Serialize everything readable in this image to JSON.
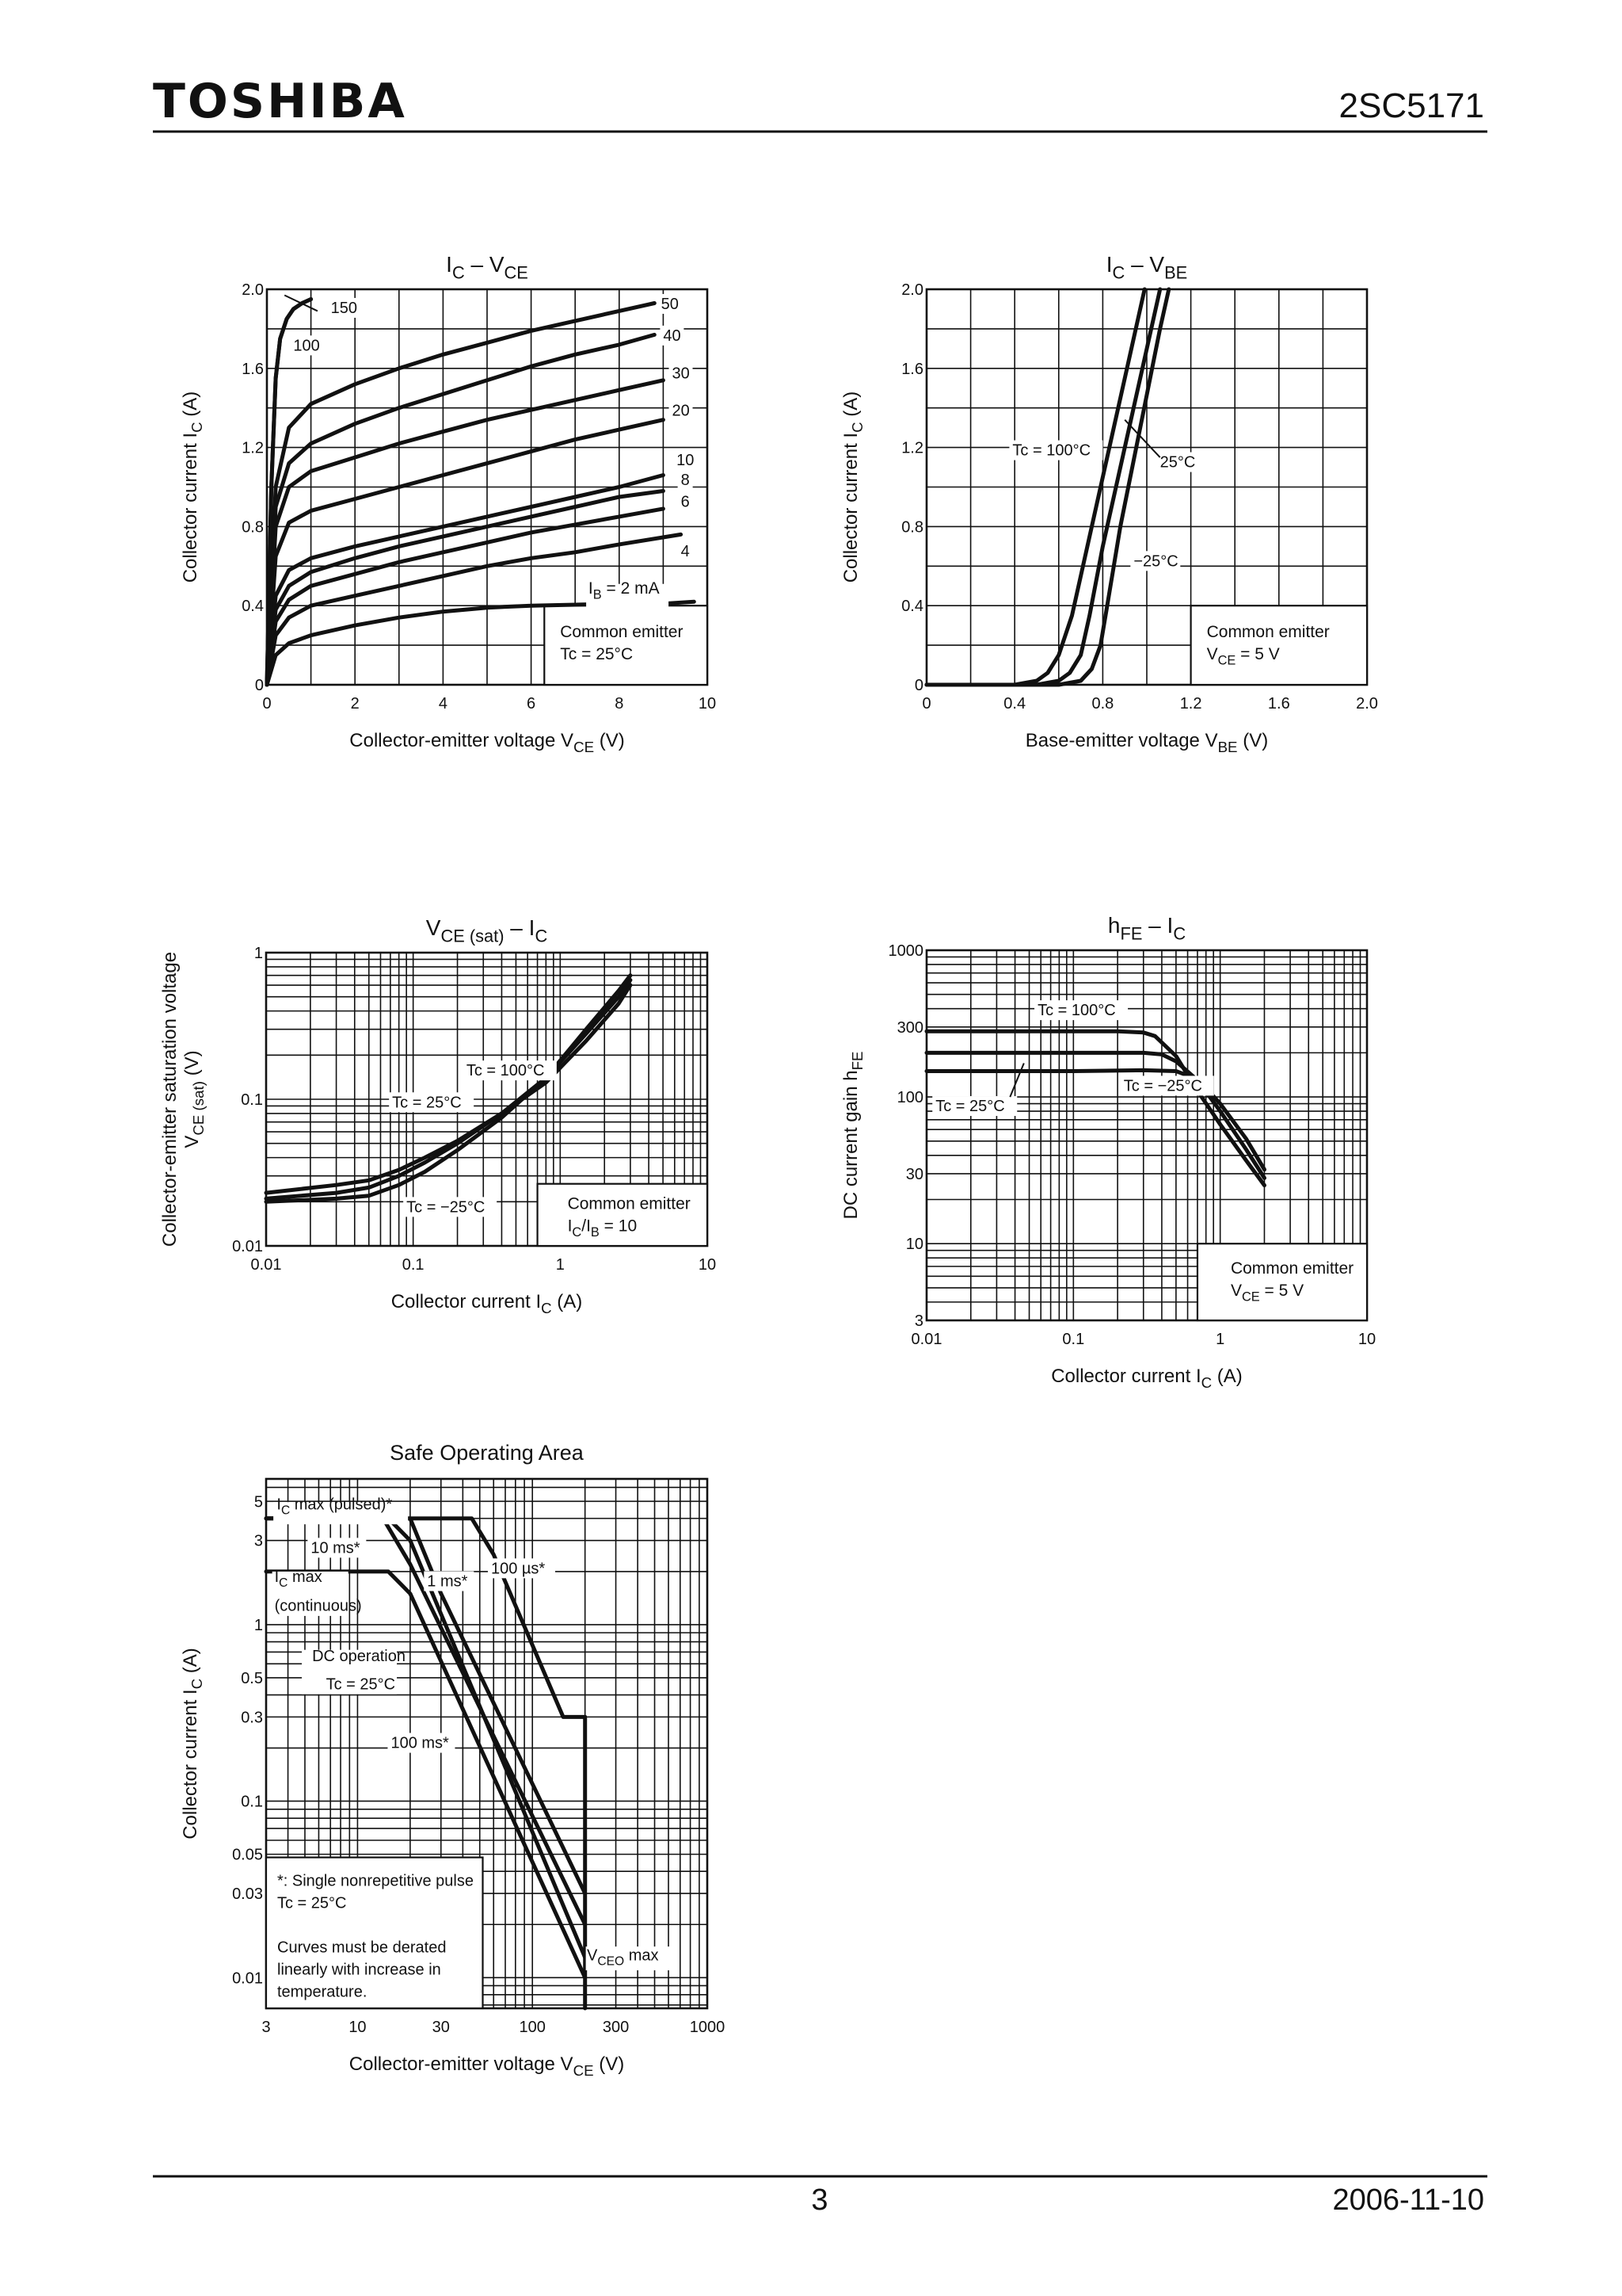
{
  "header": {
    "brand": "TOSHIBA",
    "part_number": "2SC5171"
  },
  "footer": {
    "page_number": "3",
    "date": "2006-11-10"
  },
  "chart_data": [
    {
      "id": "ic-vce",
      "type": "line",
      "title_main": "I",
      "title_sub": "C",
      "title_sep": " – V",
      "title_sub2": "CE",
      "xlabel": "Collector-emitter voltage",
      "xsym": "V",
      "xsym_sub": "CE",
      "xunit": "(V)",
      "ylabel": "Collector current",
      "ysym": "I",
      "ysym_sub": "C",
      "yunit": "(A)",
      "xlim": [
        0,
        10
      ],
      "ylim": [
        0,
        2.0
      ],
      "xticks": [
        "0",
        "2",
        "4",
        "6",
        "8",
        "10"
      ],
      "yticks": [
        "0",
        "0.4",
        "0.8",
        "1.2",
        "1.6",
        "2.0"
      ],
      "note": [
        "Common emitter",
        "Tc = 25°C"
      ],
      "series": [
        {
          "name": "150",
          "x": [
            0,
            0.1,
            0.2,
            0.3,
            0.45,
            0.6,
            0.8,
            1.0
          ],
          "y": [
            0,
            1.0,
            1.55,
            1.75,
            1.85,
            1.9,
            1.93,
            1.95
          ]
        },
        {
          "name": "100",
          "x": [
            0,
            0.1,
            0.2,
            0.3,
            0.45,
            0.6,
            0.8,
            1.0
          ],
          "y": [
            0,
            1.0,
            1.55,
            1.75,
            1.85,
            1.9,
            1.93,
            1.95
          ]
        },
        {
          "name": "50",
          "x": [
            0,
            0.2,
            0.5,
            1,
            2,
            3,
            4,
            5,
            6,
            7,
            8,
            8.8
          ],
          "y": [
            0,
            1.0,
            1.3,
            1.42,
            1.52,
            1.6,
            1.67,
            1.73,
            1.79,
            1.84,
            1.89,
            1.93
          ]
        },
        {
          "name": "40",
          "x": [
            0,
            0.2,
            0.5,
            1,
            2,
            3,
            4,
            5,
            6,
            7,
            8,
            8.8
          ],
          "y": [
            0,
            0.9,
            1.12,
            1.22,
            1.32,
            1.4,
            1.47,
            1.54,
            1.61,
            1.67,
            1.72,
            1.77
          ]
        },
        {
          "name": "30",
          "x": [
            0,
            0.2,
            0.5,
            1,
            2,
            3,
            4,
            5,
            6,
            7,
            8,
            9
          ],
          "y": [
            0,
            0.8,
            1.0,
            1.08,
            1.15,
            1.22,
            1.28,
            1.34,
            1.39,
            1.44,
            1.49,
            1.54
          ]
        },
        {
          "name": "20",
          "x": [
            0,
            0.2,
            0.5,
            1,
            2,
            3,
            4,
            5,
            6,
            7,
            8,
            9
          ],
          "y": [
            0,
            0.65,
            0.82,
            0.88,
            0.94,
            1.0,
            1.06,
            1.12,
            1.18,
            1.24,
            1.29,
            1.34
          ]
        },
        {
          "name": "10",
          "x": [
            0,
            0.2,
            0.5,
            1,
            2,
            3,
            4,
            5,
            6,
            7,
            8,
            9
          ],
          "y": [
            0,
            0.45,
            0.58,
            0.64,
            0.7,
            0.75,
            0.8,
            0.85,
            0.9,
            0.95,
            1.0,
            1.06
          ]
        },
        {
          "name": "8",
          "x": [
            0,
            0.2,
            0.5,
            1,
            2,
            3,
            4,
            5,
            6,
            7,
            8,
            9
          ],
          "y": [
            0,
            0.38,
            0.5,
            0.57,
            0.64,
            0.7,
            0.75,
            0.8,
            0.85,
            0.9,
            0.95,
            0.98
          ]
        },
        {
          "name": "6",
          "x": [
            0,
            0.2,
            0.5,
            1,
            2,
            3,
            4,
            5,
            6,
            7,
            8,
            9
          ],
          "y": [
            0,
            0.32,
            0.43,
            0.5,
            0.56,
            0.62,
            0.67,
            0.72,
            0.77,
            0.81,
            0.85,
            0.89
          ]
        },
        {
          "name": "4",
          "x": [
            0,
            0.2,
            0.5,
            1,
            2,
            3,
            4,
            5,
            6,
            7,
            8,
            9.4
          ],
          "y": [
            0,
            0.25,
            0.34,
            0.4,
            0.45,
            0.5,
            0.55,
            0.6,
            0.64,
            0.67,
            0.71,
            0.76
          ]
        },
        {
          "name": "IB = 2 mA",
          "x": [
            0,
            0.2,
            0.5,
            1,
            2,
            3,
            4,
            5,
            6,
            7,
            8,
            9,
            9.7
          ],
          "y": [
            0,
            0.15,
            0.21,
            0.25,
            0.3,
            0.34,
            0.37,
            0.39,
            0.4,
            0.405,
            0.41,
            0.41,
            0.42
          ]
        }
      ],
      "curve_labels": [
        "150",
        "100",
        "50",
        "40",
        "30",
        "20",
        "10",
        "8",
        "6",
        "4"
      ],
      "ib_label": {
        "pre": "I",
        "sub": "B",
        "post": " = 2 mA"
      }
    },
    {
      "id": "ic-vbe",
      "type": "line",
      "title_main": "I",
      "title_sub": "C",
      "title_sep": " – V",
      "title_sub2": "BE",
      "xlabel": "Base-emitter voltage",
      "xsym": "V",
      "xsym_sub": "BE",
      "xunit": "(V)",
      "ylabel": "Collector current",
      "ysym": "I",
      "ysym_sub": "C",
      "yunit": "(A)",
      "xlim": [
        0,
        2.0
      ],
      "ylim": [
        0,
        2.0
      ],
      "xticks": [
        "0",
        "0.4",
        "0.8",
        "1.2",
        "1.6",
        "2.0"
      ],
      "yticks": [
        "0",
        "0.4",
        "0.8",
        "1.2",
        "1.6",
        "2.0"
      ],
      "note_line1": "Common emitter",
      "note_pre": "V",
      "note_sub": "CE",
      "note_post": " = 5 V",
      "series": [
        {
          "name": "Tc = 100°C",
          "x": [
            0,
            0.4,
            0.5,
            0.55,
            0.6,
            0.66,
            0.75,
            0.85,
            0.95,
            0.99
          ],
          "y": [
            0,
            0,
            0.02,
            0.06,
            0.15,
            0.35,
            0.8,
            1.3,
            1.8,
            2.0
          ]
        },
        {
          "name": "25°C",
          "x": [
            0,
            0.5,
            0.6,
            0.65,
            0.7,
            0.74,
            0.8,
            0.9,
            1.0,
            1.06
          ],
          "y": [
            0,
            0,
            0.02,
            0.06,
            0.15,
            0.35,
            0.7,
            1.2,
            1.7,
            2.0
          ]
        },
        {
          "name": "−25°C",
          "x": [
            0,
            0.6,
            0.7,
            0.75,
            0.79,
            0.82,
            0.88,
            0.97,
            1.06,
            1.1
          ],
          "y": [
            0,
            0,
            0.02,
            0.08,
            0.2,
            0.4,
            0.8,
            1.3,
            1.8,
            2.0
          ]
        }
      ]
    },
    {
      "id": "vcesat-ic",
      "type": "line",
      "title_main": "V",
      "title_sub": "CE (sat)",
      "title_sep": " – I",
      "title_sub2": "C",
      "xlabel": "Collector current",
      "xsym": "I",
      "xsym_sub": "C",
      "xunit": "(A)",
      "ylabel": "Collector-emitter saturation voltage",
      "ysym": "V",
      "ysym_sub": "CE (sat)",
      "yunit": "(V)",
      "xlim": [
        0.01,
        10
      ],
      "ylim": [
        0.01,
        1
      ],
      "xscale": "log",
      "yscale": "log",
      "xticks": [
        "0.01",
        "0.1",
        "1",
        "10"
      ],
      "yticks": [
        "0.01",
        "0.1",
        "1"
      ],
      "note_line1": "Common emitter",
      "note_pre": "I",
      "note_sub": "C",
      "note_mid": "/I",
      "note_sub2": "B",
      "note_post": " = 10",
      "series": [
        {
          "name": "Tc = 100°C",
          "x": [
            0.01,
            0.03,
            0.05,
            0.08,
            0.12,
            0.2,
            0.4,
            0.8,
            1.5,
            2.5,
            3.0
          ],
          "y": [
            0.023,
            0.026,
            0.028,
            0.033,
            0.04,
            0.052,
            0.08,
            0.13,
            0.25,
            0.45,
            0.6
          ]
        },
        {
          "name": "Tc = 25°C",
          "x": [
            0.01,
            0.03,
            0.05,
            0.08,
            0.12,
            0.2,
            0.4,
            0.8,
            1.5,
            2.5,
            3.0
          ],
          "y": [
            0.021,
            0.023,
            0.025,
            0.03,
            0.037,
            0.05,
            0.08,
            0.14,
            0.28,
            0.5,
            0.65
          ]
        },
        {
          "name": "Tc = −25°C",
          "x": [
            0.01,
            0.03,
            0.05,
            0.08,
            0.12,
            0.2,
            0.4,
            0.8,
            1.5,
            2.5,
            3.0
          ],
          "y": [
            0.02,
            0.021,
            0.022,
            0.026,
            0.032,
            0.045,
            0.075,
            0.14,
            0.3,
            0.55,
            0.7
          ]
        }
      ]
    },
    {
      "id": "hfe-ic",
      "type": "line",
      "title_main": "h",
      "title_sub": "FE",
      "title_sep": " – I",
      "title_sub2": "C",
      "xlabel": "Collector current",
      "xsym": "I",
      "xsym_sub": "C",
      "xunit": "(A)",
      "ylabel": "DC current gain",
      "ysym": "h",
      "ysym_sub": "FE",
      "yunit": "",
      "xlim": [
        0.01,
        10
      ],
      "ylim": [
        3,
        1000
      ],
      "xscale": "log",
      "yscale": "log",
      "xticks": [
        "0.01",
        "0.1",
        "1",
        "10"
      ],
      "yticks": [
        "3",
        "10",
        "30",
        "100",
        "300",
        "1000"
      ],
      "note_line1": "Common emitter",
      "note_pre": "V",
      "note_sub": "CE",
      "note_post": " = 5 V",
      "series": [
        {
          "name": "Tc = 100°C",
          "x": [
            0.01,
            0.1,
            0.2,
            0.3,
            0.36,
            0.5,
            0.7,
            1.0,
            1.5,
            2.0
          ],
          "y": [
            280,
            280,
            280,
            275,
            260,
            190,
            110,
            65,
            37,
            25
          ]
        },
        {
          "name": "Tc = 25°C",
          "x": [
            0.01,
            0.1,
            0.3,
            0.4,
            0.5,
            0.7,
            1.0,
            1.5,
            2.0
          ],
          "y": [
            200,
            200,
            200,
            195,
            175,
            130,
            80,
            44,
            28
          ]
        },
        {
          "name": "Tc = −25°C",
          "x": [
            0.01,
            0.1,
            0.3,
            0.5,
            0.6,
            0.8,
            1.0,
            1.5,
            2.0
          ],
          "y": [
            150,
            150,
            152,
            150,
            140,
            115,
            90,
            52,
            32
          ]
        }
      ]
    },
    {
      "id": "soa",
      "type": "line",
      "title": "Safe Operating Area",
      "xlabel": "Collector-emitter voltage",
      "xsym": "V",
      "xsym_sub": "CE",
      "xunit": "(V)",
      "ylabel": "Collector current",
      "ysym": "I",
      "ysym_sub": "C",
      "yunit": "(A)",
      "xlim": [
        3,
        1000
      ],
      "ylim": [
        0.0067,
        6.7
      ],
      "xscale": "log",
      "yscale": "log",
      "xticks": [
        "3",
        "10",
        "30",
        "100",
        "300",
        "1000"
      ],
      "yticks": [
        "0.01",
        "0.03",
        "0.05",
        "0.1",
        "0.3",
        "0.5",
        "1",
        "3",
        "5"
      ],
      "labels": {
        "ic_pulsed": {
          "pre": "I",
          "sub": "C",
          "post": " max (pulsed)*"
        },
        "ic_max": {
          "pre": "I",
          "sub": "C",
          "post": " max"
        },
        "continuous": "(continuous)",
        "ms10": "10 ms*",
        "ms1": "1 ms*",
        "us100": "100 µs*",
        "dc1": "DC operation",
        "dc2": "Tc = 25°C",
        "ms100": "100 ms*",
        "vceo": {
          "pre": "V",
          "sub": "CEO",
          "post": " max"
        }
      },
      "note_lines": [
        "*:  Single nonrepetitive pulse",
        "     Tc = 25°C",
        "",
        "Curves must be derated",
        "linearly with increase in",
        "temperature."
      ],
      "series": [
        {
          "name": "DC operation",
          "x": [
            3,
            10,
            15,
            20,
            200
          ],
          "y": [
            2,
            2,
            2,
            1.5,
            0.01
          ]
        },
        {
          "name": "100 ms*",
          "x": [
            3,
            10,
            15,
            20,
            200
          ],
          "y": [
            4,
            4,
            4,
            3,
            0.013
          ]
        },
        {
          "name": "10 ms*",
          "x": [
            3,
            10,
            14,
            20,
            200
          ],
          "y": [
            4,
            4,
            4,
            2.2,
            0.02
          ]
        },
        {
          "name": "1 ms*",
          "x": [
            3,
            10,
            20,
            30,
            200
          ],
          "y": [
            4,
            4,
            4,
            1.5,
            0.03
          ]
        },
        {
          "name": "100 µs*",
          "x": [
            3,
            10,
            30,
            45,
            60,
            150,
            200
          ],
          "y": [
            4,
            4,
            4,
            4,
            2.5,
            0.3,
            0.3
          ]
        },
        {
          "name": "VCEO max",
          "x": [
            200,
            200
          ],
          "y": [
            0.3,
            0.0067
          ]
        }
      ]
    }
  ]
}
